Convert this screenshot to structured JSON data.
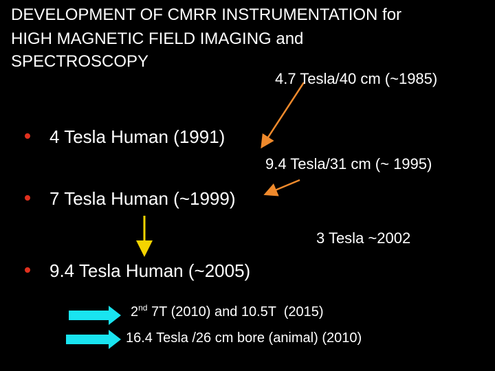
{
  "title": [
    "DEVELOPMENT OF CMRR INSTRUMENTATION for",
    "HIGH MAGNETIC FIELD IMAGING and",
    "SPECTROSCOPY"
  ],
  "annotations": [
    "4.7 Tesla/40 cm (~1985)",
    "9.4 Tesla/31 cm (~ 1995)",
    "3 Tesla ~2002"
  ],
  "bullets": [
    "4 Tesla Human (1991)",
    "7 Tesla Human (~1999)",
    "9.4 Tesla Human (~2005)"
  ],
  "notes": [
    {
      "number": "2",
      "suffix": "nd",
      "text": " 7T (2010) and 10.5T  (2015)"
    },
    {
      "text": "16.4 Tesla /26 cm bore (animal) (2010)"
    }
  ]
}
